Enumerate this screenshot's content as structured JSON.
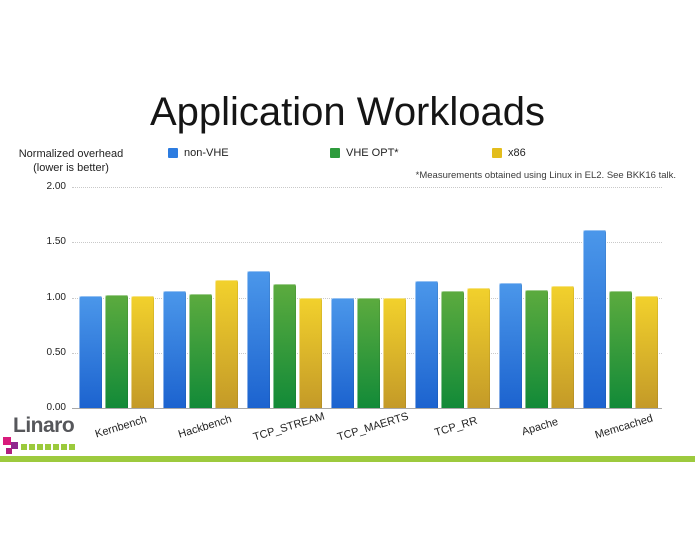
{
  "slide": {
    "title": "Application Workloads",
    "y_axis_note_line1": "Normalized overhead",
    "y_axis_note_line2": "(lower is better)",
    "footnote": "*Measurements obtained using Linux in EL2.  See BKK16 talk.",
    "logo": {
      "text": "Linaro",
      "green_square_color": "#9bca3c",
      "cluster_square_colors": [
        "#d81b7c",
        "#90278e",
        "#b01e7e"
      ]
    },
    "accent_stripe_color": "#9dca3e"
  },
  "chart_data": {
    "type": "bar",
    "title": "Application Workloads",
    "categories": [
      "Kernbench",
      "Hackbench",
      "TCP_STREAM",
      "TCP_MAERTS",
      "TCP_RR",
      "Apache",
      "Memcached"
    ],
    "series": [
      {
        "name": "non-VHE",
        "color": "#2d7ce0",
        "color_top": "#4b97ea",
        "color_bottom": "#1c63cf",
        "values": [
          1.01,
          1.06,
          1.24,
          1.0,
          1.15,
          1.13,
          1.61
        ]
      },
      {
        "name": "VHE OPT*",
        "color": "#2d9b3c",
        "color_top": "#5cab3e",
        "color_bottom": "#128a38",
        "values": [
          1.02,
          1.03,
          1.12,
          1.0,
          1.06,
          1.07,
          1.06
        ]
      },
      {
        "name": "x86",
        "color": "#e3bd1c",
        "color_top": "#f2d12c",
        "color_bottom": "#c49a28",
        "values": [
          1.01,
          1.16,
          1.0,
          1.0,
          1.09,
          1.1,
          1.01
        ]
      }
    ],
    "ylim": [
      0,
      2
    ],
    "yticks": [
      "2.00",
      "1.50",
      "1.00",
      "0.50",
      "0.00"
    ],
    "ytick_values": [
      2.0,
      1.5,
      1.0,
      0.5,
      0.0
    ],
    "grid": "dotted horizontal gridlines, solid baseline",
    "legend_position": "top",
    "xtick_rotation": -17
  }
}
